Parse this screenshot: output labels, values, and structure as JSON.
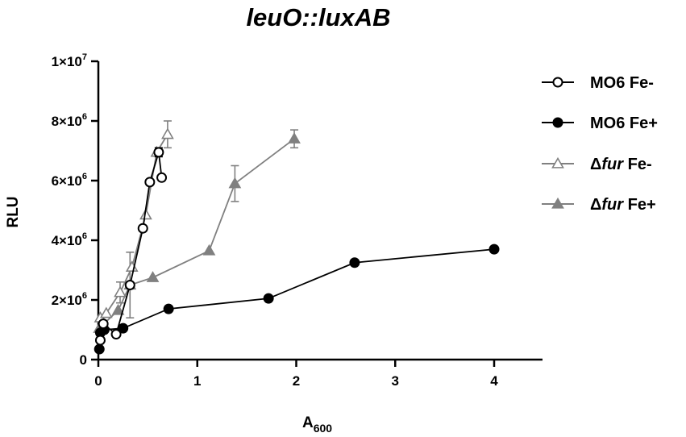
{
  "chart_data": {
    "type": "scatter",
    "title": "leuO::luxAB",
    "xlabel": {
      "base": "A",
      "sub": "600"
    },
    "ylabel": "RLU",
    "xlim": [
      0,
      4.5
    ],
    "ylim": [
      0,
      10000000
    ],
    "xticks": [
      {
        "value": 0,
        "label": "0"
      },
      {
        "value": 1,
        "label": "1"
      },
      {
        "value": 2,
        "label": "2"
      },
      {
        "value": 3,
        "label": "3"
      },
      {
        "value": 4,
        "label": "4"
      }
    ],
    "yticks": [
      {
        "value": 0,
        "label": "0",
        "base": "",
        "exp": ""
      },
      {
        "value": 2000000,
        "label": "2×10^6",
        "base": "2×10",
        "exp": "6"
      },
      {
        "value": 4000000,
        "label": "4×10^6",
        "base": "4×10",
        "exp": "6"
      },
      {
        "value": 6000000,
        "label": "6×10^6",
        "base": "6×10",
        "exp": "6"
      },
      {
        "value": 8000000,
        "label": "8×10^6",
        "base": "8×10",
        "exp": "6"
      },
      {
        "value": 10000000,
        "label": "1×10^7",
        "base": "1×10",
        "exp": "7"
      }
    ],
    "legend_position": "right",
    "grid": false,
    "series": [
      {
        "name": "MO6 Fe-",
        "label_parts": [
          "MO6 Fe-"
        ],
        "marker": "circle-open",
        "color": "#000000",
        "x": [
          0.02,
          0.05,
          0.18,
          0.32,
          0.45,
          0.52,
          0.61,
          0.64
        ],
        "y": [
          650000,
          1200000,
          850000,
          2500000,
          4400000,
          5950000,
          6950000,
          6100000
        ],
        "err": [
          0,
          0,
          0,
          0,
          0,
          0,
          150000,
          0
        ]
      },
      {
        "name": "MO6 Fe+",
        "label_parts": [
          "MO6 Fe+"
        ],
        "marker": "circle-filled",
        "color": "#000000",
        "x": [
          0.01,
          0.02,
          0.06,
          0.25,
          0.71,
          1.72,
          2.59,
          4.0
        ],
        "y": [
          350000,
          900000,
          1000000,
          1050000,
          1700000,
          2050000,
          3250000,
          3700000
        ],
        "err": [
          0,
          0,
          0,
          0,
          0,
          0,
          0,
          0
        ]
      },
      {
        "name": "Δfur Fe-",
        "label_parts": [
          "Δ",
          "fur",
          " Fe-"
        ],
        "marker": "triangle-open",
        "color": "#808080",
        "x": [
          0.02,
          0.08,
          0.22,
          0.34,
          0.48,
          0.59,
          0.7
        ],
        "y": [
          1400000,
          1550000,
          2250000,
          3100000,
          4850000,
          6950000,
          7550000
        ],
        "err": [
          0,
          0,
          350000,
          0,
          0,
          0,
          450000
        ]
      },
      {
        "name": "Δfur Fe+",
        "label_parts": [
          "Δ",
          "fur",
          " Fe+"
        ],
        "marker": "triangle-filled",
        "color": "#808080",
        "x": [
          0.01,
          0.04,
          0.2,
          0.32,
          0.55,
          1.12,
          1.38,
          1.98
        ],
        "y": [
          1050000,
          1150000,
          1650000,
          2500000,
          2750000,
          3650000,
          5900000,
          7400000
        ],
        "err": [
          0,
          0,
          0,
          1100000,
          0,
          0,
          600000,
          300000
        ]
      }
    ]
  }
}
